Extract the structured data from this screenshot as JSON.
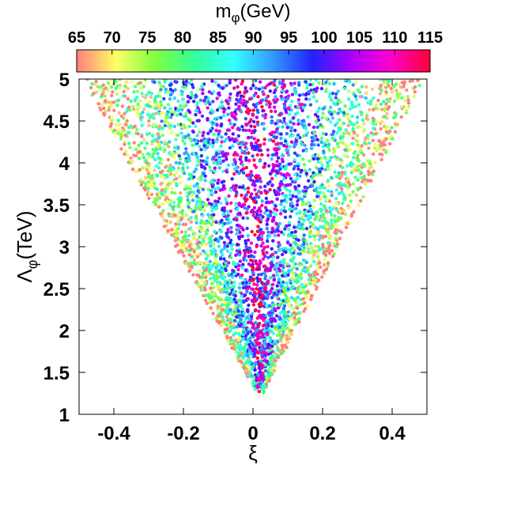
{
  "chart_data": {
    "type": "scatter",
    "title": "",
    "xlabel": "ξ",
    "ylabel_main": "Λ",
    "ylabel_sub": "φ",
    "ylabel_unit": "(TeV)",
    "xlim": [
      -0.5,
      0.5
    ],
    "ylim": [
      1,
      5
    ],
    "xticks": [
      -0.4,
      -0.2,
      0,
      0.2,
      0.4
    ],
    "xtick_labels": [
      "-0.4",
      "-0.2",
      "0",
      "0.2",
      "0.4"
    ],
    "yticks": [
      1,
      1.5,
      2,
      2.5,
      3,
      3.5,
      4,
      4.5,
      5
    ],
    "ytick_labels": [
      "1",
      "1.5",
      "2",
      "2.5",
      "3",
      "3.5",
      "4",
      "4.5",
      "5"
    ],
    "grid": false,
    "colorbar": {
      "label_main": "m",
      "label_sub": "φ",
      "label_unit": "(GeV)",
      "range": [
        65,
        115
      ],
      "ticks": [
        65,
        70,
        75,
        80,
        85,
        90,
        95,
        100,
        105,
        110,
        115
      ],
      "tick_labels": [
        "65",
        "70",
        "75",
        "80",
        "85",
        "90",
        "95",
        "100",
        "105",
        "110",
        "115"
      ],
      "colors": [
        "#ff7f7f",
        "#ffff66",
        "#7fff3f",
        "#33ff99",
        "#33ffff",
        "#3399ff",
        "#2222ff",
        "#aa00ff",
        "#ff00cc",
        "#ff0033"
      ]
    },
    "region": {
      "description_points": "Points fill a V-shaped region: apex near xi=0.02 at Lambda≈1.25 TeV, widening to xi∈[-0.48,0.48] at Lambda=5 TeV",
      "apex": [
        0.02,
        1.25
      ],
      "top_left": [
        -0.48,
        5
      ],
      "top_right": [
        0.48,
        5
      ]
    },
    "point_color_trend": "Low m_phi (65-75 GeV, red/yellow) near the edges of the V; high m_phi (95-115 GeV, blue/magenta/red) concentrated near xi≈0"
  }
}
